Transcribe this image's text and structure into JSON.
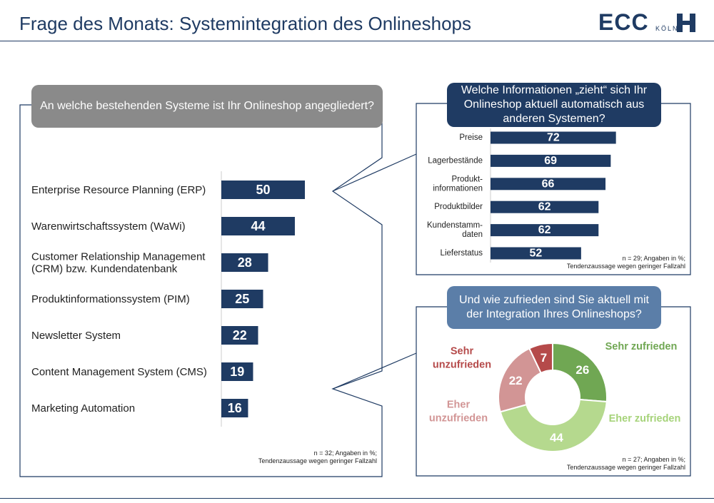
{
  "page": {
    "title": "Frage des Monats: Systemintegration des Onlineshops",
    "logo": {
      "main": "ECC",
      "sub": "KÖLN"
    }
  },
  "left_panel": {
    "question": "An welche bestehenden Systeme ist Ihr Onlineshop angegliedert?",
    "footnote": [
      "n = 32; Angaben in %;",
      "Tendenzaussage wegen geringer Fallzahl"
    ]
  },
  "right_top_panel": {
    "question": "Welche Informationen „zieht“ sich Ihr Onlineshop aktuell automatisch aus anderen Systemen?",
    "footnote": [
      "n = 29; Angaben in %;",
      "Tendenzaussage wegen geringer Fallzahl"
    ]
  },
  "right_bottom_panel": {
    "question": "Und wie zufrieden sind Sie aktuell mit der Integration Ihres Onlineshops?",
    "footnote": [
      "n = 27; Angaben in %;",
      "Tendenzaussage wegen geringer Fallzahl"
    ]
  },
  "chart_data": [
    {
      "type": "bar",
      "orientation": "horizontal",
      "categories": [
        [
          "Enterprise Resource Planning (ERP)"
        ],
        [
          "Warenwirtschaftssystem (WaWi)"
        ],
        [
          "Customer Relationship Management",
          "(CRM) bzw. Kundendatenbank"
        ],
        [
          "Produktinformationssystem (PIM)"
        ],
        [
          "Newsletter System"
        ],
        [
          "Content Management System (CMS)"
        ],
        [
          "Marketing Automation"
        ]
      ],
      "values": [
        50,
        44,
        28,
        25,
        22,
        19,
        16
      ],
      "bar_color": "#1f3b63",
      "xlim": [
        0,
        100
      ]
    },
    {
      "type": "bar",
      "orientation": "horizontal",
      "categories": [
        [
          "Preise"
        ],
        [
          "Lagerbestände"
        ],
        [
          "Produkt-",
          "informationen"
        ],
        [
          "Produktbilder"
        ],
        [
          "Kundenstamm-",
          "daten"
        ],
        [
          "Lieferstatus"
        ]
      ],
      "values": [
        72,
        69,
        66,
        62,
        62,
        52
      ],
      "bar_color": "#1f3b63",
      "xlim": [
        0,
        100
      ]
    },
    {
      "type": "pie",
      "donut": true,
      "labels": [
        [
          "Sehr zufrieden"
        ],
        [
          "Eher zufrieden"
        ],
        [
          "Eher",
          "unzufrieden"
        ],
        [
          "Sehr",
          "unzufrieden"
        ]
      ],
      "values": [
        26,
        44,
        22,
        7
      ],
      "colors": [
        "#70a753",
        "#b5d98e",
        "#d29595",
        "#b54a4a"
      ],
      "label_colors": [
        "#70a753",
        "#a6d37a",
        "#d29595",
        "#b54a4a"
      ]
    }
  ]
}
